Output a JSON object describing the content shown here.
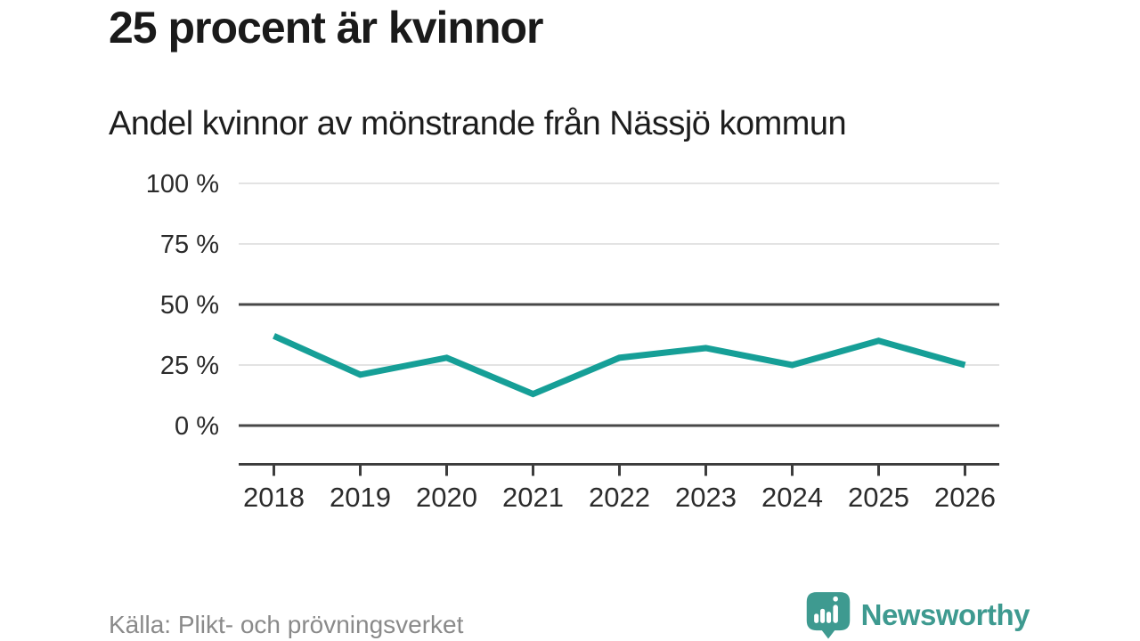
{
  "chart_data": {
    "type": "line",
    "title": "25 procent är kvinnor",
    "subtitle": "Andel kvinnor av mönstrande från Nässjö kommun",
    "x": [
      "2018",
      "2019",
      "2020",
      "2021",
      "2022",
      "2023",
      "2024",
      "2025",
      "2026"
    ],
    "series": [
      {
        "name": "Andel kvinnor av mönstrande",
        "values": [
          37,
          21,
          28,
          13,
          28,
          32,
          25,
          35,
          25
        ],
        "color": "#169f97"
      }
    ],
    "unit": "%",
    "xlabel": "",
    "ylabel": "",
    "ylim": [
      0,
      100
    ],
    "grid": true,
    "legend": "none",
    "yticks": [
      {
        "value": 100,
        "label": "100 %",
        "emphasis": false
      },
      {
        "value": 75,
        "label": "75 %",
        "emphasis": false
      },
      {
        "value": 50,
        "label": "50 %",
        "emphasis": true
      },
      {
        "value": 25,
        "label": "25 %",
        "emphasis": false
      },
      {
        "value": 0,
        "label": "0 %",
        "emphasis": true
      }
    ]
  },
  "footer": {
    "source": "Källa: Plikt- och prövningsverket",
    "brand": "Newsworthy"
  },
  "colors": {
    "line": "#169f97",
    "brand": "#3e9a90",
    "grid_light": "#e3e3e3",
    "grid_dark": "#474747",
    "axis": "#3d3d3d",
    "text_axis": "#2b2b2b"
  }
}
